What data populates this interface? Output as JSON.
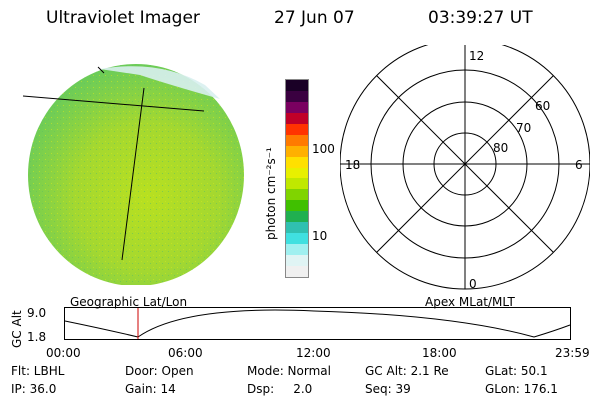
{
  "header": {
    "instrument": "Ultraviolet Imager",
    "date": "27 Jun 07",
    "time": "03:39:27 UT"
  },
  "colorbar": {
    "unit_label": "photon cm⁻²s⁻¹",
    "ticks": [
      "100",
      "10"
    ],
    "colors": [
      "#1a0026",
      "#3a0040",
      "#7a0060",
      "#c00028",
      "#ff3300",
      "#ff7a00",
      "#ffb000",
      "#ffe000",
      "#e8f000",
      "#c0e800",
      "#80d400",
      "#40c000",
      "#20b050",
      "#30c0b0",
      "#40e0e0",
      "#a0f0f0",
      "#e0f4f4",
      "#f0f0f0"
    ]
  },
  "polar_plot": {
    "hour_labels": {
      "top": "12",
      "left": "18",
      "right": "6",
      "bottom": "0"
    },
    "lat_labels": [
      "60",
      "70",
      "80"
    ]
  },
  "timeline": {
    "left_label": "Geographic Lat/Lon",
    "right_label": "Apex MLat/MLT",
    "axis_label": "GC Alt",
    "y_ticks": [
      "9.0",
      "1.8"
    ],
    "x_ticks": [
      "00:00",
      "06:00",
      "12:00",
      "18:00",
      "23:59"
    ],
    "current_marker_color": "#cc0000"
  },
  "status": {
    "row1": {
      "flt": "Flt: LBHL",
      "door": "Door: Open",
      "mode": "Mode: Normal",
      "gc_alt": "GC Alt: 2.1 Re",
      "glat": "GLat:  50.1"
    },
    "row2": {
      "ip": "IP: 36.0",
      "gain": "Gain: 14",
      "dsp": "Dsp:     2.0",
      "seq": "Seq: 39",
      "glon": "GLon: 176.1"
    }
  }
}
